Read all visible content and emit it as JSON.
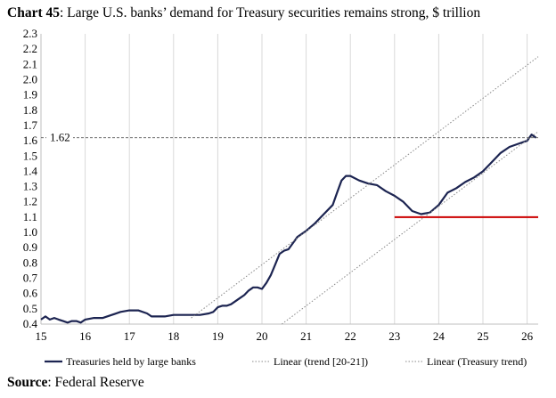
{
  "title": {
    "prefix": "Chart 45",
    "text": ": Large U.S. banks’ demand for Treasury securities remains strong, $ trillion"
  },
  "source": {
    "prefix": "Source",
    "text": ": Federal Reserve"
  },
  "colors": {
    "series": "#1c2451",
    "red_line": "#cc0000",
    "trend": "#888888",
    "grid": "#d9d9d9",
    "ref_line": "#555555"
  },
  "chart_data": {
    "type": "line",
    "title": "Large U.S. banks’ demand for Treasury securities remains strong, $ trillion",
    "xlim": [
      15,
      26.25
    ],
    "ylim": [
      0.4,
      2.3
    ],
    "x_ticks": [
      "15",
      "16",
      "17",
      "18",
      "19",
      "20",
      "21",
      "22",
      "23",
      "24",
      "25",
      "26"
    ],
    "y_ticks": [
      "0.4",
      "0.5",
      "0.6",
      "0.7",
      "0.8",
      "0.9",
      "1.0",
      "1.1",
      "1.2",
      "1.3",
      "1.4",
      "1.5",
      "1.6",
      "1.7",
      "1.8",
      "1.9",
      "2.0",
      "2.1",
      "2.2",
      "2.3"
    ],
    "grid": "vertical",
    "legend": "bottom",
    "annotations": [
      {
        "text": "1.62",
        "y": 1.62
      }
    ],
    "reference_lines": [
      {
        "type": "horizontal",
        "y": 1.1,
        "x_start": 23,
        "x_end": 26.25,
        "color": "#cc0000"
      }
    ],
    "series": [
      {
        "name": "Treasuries held by large banks",
        "style": "solid",
        "x": [
          15.0,
          15.1,
          15.2,
          15.3,
          15.4,
          15.5,
          15.6,
          15.7,
          15.8,
          15.9,
          16.0,
          16.2,
          16.4,
          16.6,
          16.8,
          17.0,
          17.2,
          17.4,
          17.5,
          17.6,
          17.8,
          18.0,
          18.2,
          18.4,
          18.5,
          18.6,
          18.8,
          18.9,
          19.0,
          19.1,
          19.2,
          19.3,
          19.4,
          19.5,
          19.6,
          19.7,
          19.8,
          19.9,
          20.0,
          20.1,
          20.2,
          20.3,
          20.4,
          20.5,
          20.6,
          20.7,
          20.8,
          21.0,
          21.2,
          21.4,
          21.6,
          21.7,
          21.8,
          21.9,
          22.0,
          22.2,
          22.4,
          22.6,
          22.8,
          23.0,
          23.2,
          23.4,
          23.6,
          23.8,
          24.0,
          24.2,
          24.4,
          24.6,
          24.8,
          25.0,
          25.2,
          25.4,
          25.6,
          25.8,
          26.0,
          26.1,
          26.2
        ],
        "values": [
          0.43,
          0.45,
          0.43,
          0.44,
          0.43,
          0.42,
          0.41,
          0.42,
          0.42,
          0.41,
          0.43,
          0.44,
          0.44,
          0.46,
          0.48,
          0.49,
          0.49,
          0.47,
          0.45,
          0.45,
          0.45,
          0.46,
          0.46,
          0.46,
          0.46,
          0.46,
          0.47,
          0.48,
          0.51,
          0.52,
          0.52,
          0.53,
          0.55,
          0.57,
          0.59,
          0.62,
          0.64,
          0.64,
          0.63,
          0.67,
          0.72,
          0.79,
          0.86,
          0.88,
          0.89,
          0.93,
          0.97,
          1.01,
          1.06,
          1.12,
          1.18,
          1.26,
          1.34,
          1.37,
          1.37,
          1.34,
          1.32,
          1.31,
          1.27,
          1.24,
          1.2,
          1.14,
          1.12,
          1.13,
          1.18,
          1.26,
          1.29,
          1.33,
          1.36,
          1.4,
          1.46,
          1.52,
          1.56,
          1.58,
          1.6,
          1.64,
          1.62
        ]
      },
      {
        "name": "Linear (trend [20-21])",
        "style": "dotted",
        "x": [
          18.4,
          26.25
        ],
        "values": [
          0.44,
          2.15
        ]
      },
      {
        "name": "Linear (Treasury trend)",
        "style": "dotted",
        "x": [
          20.45,
          26.25
        ],
        "values": [
          0.4,
          1.66
        ]
      }
    ]
  }
}
